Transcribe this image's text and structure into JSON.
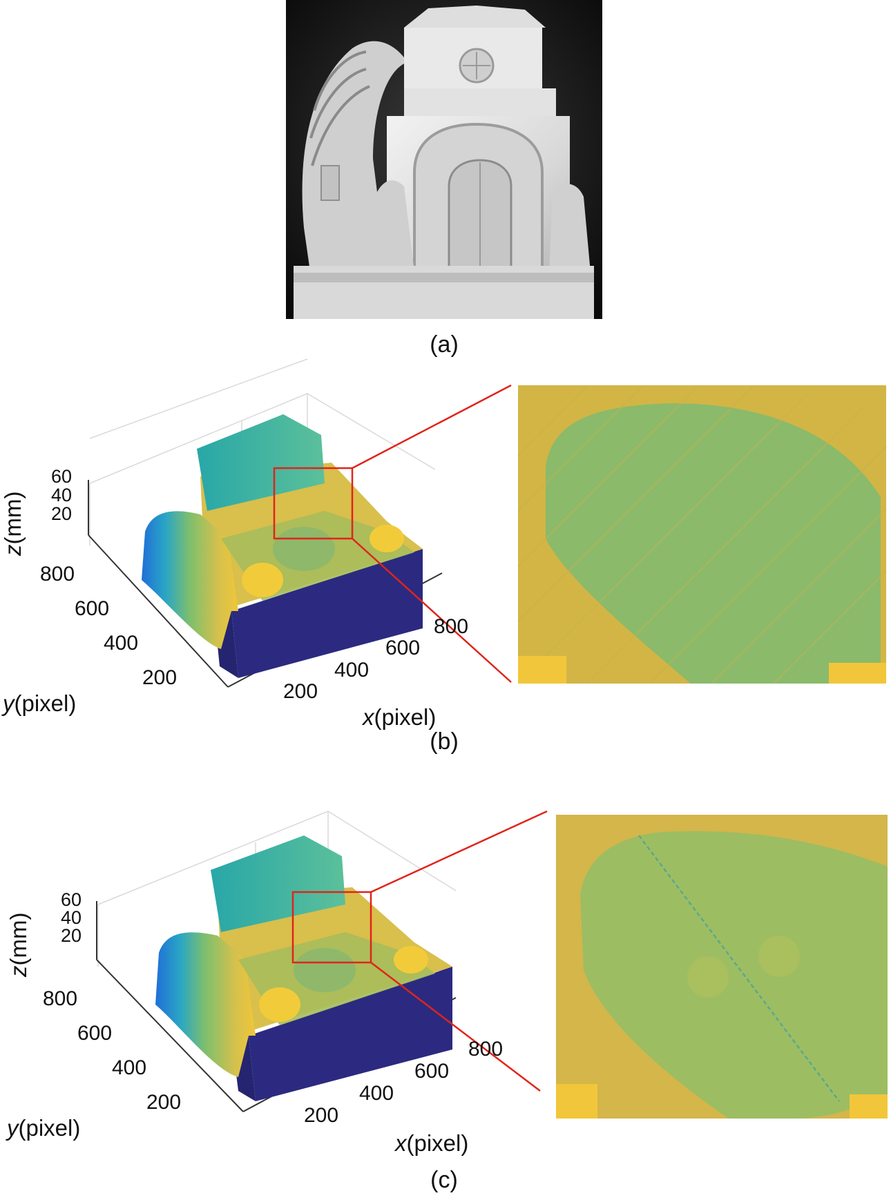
{
  "panels": {
    "a": {
      "caption": "(a)",
      "image": "grayscale-photo-of-white-house-sculpture"
    },
    "b": {
      "caption": "(b)",
      "plot": "3d-surface-noisy-reconstruction",
      "z_label_var": "z",
      "z_label_unit": "(mm)",
      "y_label_var": "y",
      "y_label_unit": "(pixel)",
      "x_label_var": "x",
      "x_label_unit": "(pixel)",
      "z_ticks": [
        "60",
        "40",
        "20"
      ],
      "y_ticks": [
        "800",
        "600",
        "400",
        "200"
      ],
      "x_ticks": [
        "200",
        "400",
        "600",
        "800"
      ],
      "zoom_inset": "noisy-surface-close-up"
    },
    "c": {
      "caption": "(c)",
      "plot": "3d-surface-smooth-reconstruction",
      "z_label_var": "z",
      "z_label_unit": "(mm)",
      "y_label_var": "y",
      "y_label_unit": "(pixel)",
      "x_label_var": "x",
      "x_label_unit": "(pixel)",
      "z_ticks": [
        "60",
        "40",
        "20"
      ],
      "y_ticks": [
        "800",
        "600",
        "400",
        "200"
      ],
      "x_ticks": [
        "200",
        "400",
        "600",
        "800"
      ],
      "zoom_inset": "smooth-surface-close-up"
    }
  },
  "colors": {
    "zoom_box": "#e0241b",
    "base_navy": "#2b2a80",
    "surface_yellow": "#e3bf45",
    "surface_green": "#93bc6a",
    "surface_teal": "#39b3a8",
    "surface_blue": "#1f6fd8"
  }
}
